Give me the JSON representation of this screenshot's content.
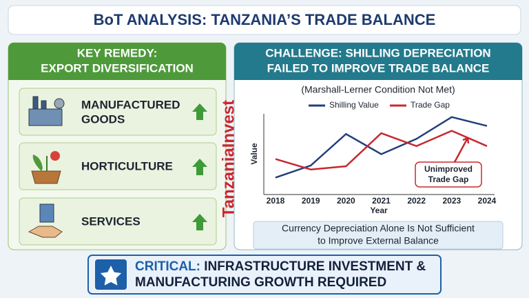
{
  "title": "BoT ANALYSIS: TANZANIA’S TRADE BALANCE",
  "left_panel": {
    "header": [
      "KEY REMEDY:",
      "EXPORT DIVERSIFICATION"
    ],
    "items": [
      {
        "label": [
          "MANUFACTURED",
          "GOODS"
        ]
      },
      {
        "label": [
          "HORTICULTURE"
        ]
      },
      {
        "label": [
          "SERVICES"
        ]
      }
    ]
  },
  "right_panel": {
    "header": [
      "CHALLENGE: SHILLING DEPRECIATION",
      "FAILED TO IMPROVE TRADE BALANCE"
    ],
    "note": [
      "Currency Depreciation Alone Is Not Sufficient",
      "to Improve External Balance"
    ]
  },
  "watermark": "TanzaniaInvest",
  "footer": {
    "emphasis": "CRITICAL:",
    "lines": [
      "INFRASTRUCTURE INVESTMENT &",
      "MANUFACTURING GROWTH REQUIRED"
    ]
  },
  "chart_data": {
    "type": "line",
    "subtitle": "(Marshall-Lerner Condition Not Met)",
    "x_label": "Year",
    "y_label": "Value",
    "categories": [
      "2018",
      "2019",
      "2020",
      "2021",
      "2022",
      "2023",
      "2024"
    ],
    "series": [
      {
        "name": "Shilling Value",
        "color": "#1f3f7a",
        "values": [
          2.1,
          3.6,
          7.5,
          5.0,
          6.9,
          9.6,
          8.5
        ]
      },
      {
        "name": "Trade Gap",
        "color": "#c8282e",
        "values": [
          4.4,
          3.1,
          3.5,
          7.6,
          6.0,
          7.9,
          6.0
        ]
      }
    ],
    "ylim": [
      0,
      10
    ],
    "annotation": [
      "Unimproved",
      "Trade Gap"
    ]
  }
}
